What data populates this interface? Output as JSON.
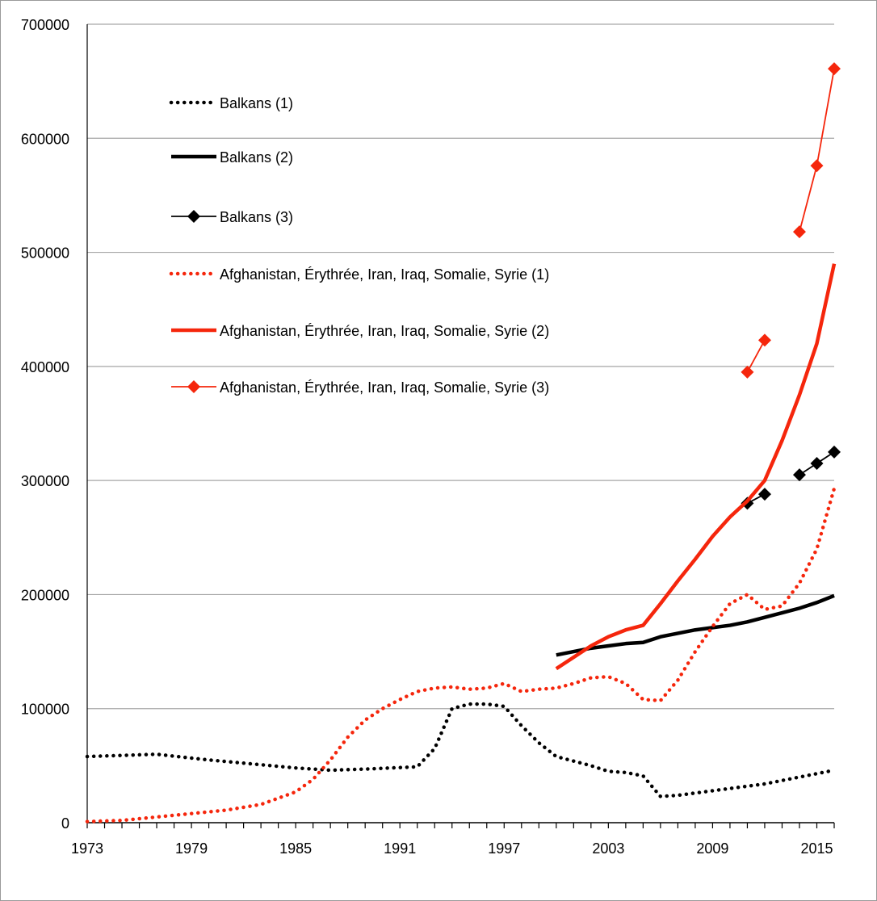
{
  "chart_data": {
    "type": "line",
    "title": "",
    "xlabel": "",
    "ylabel": "",
    "x_range": [
      1973,
      2016
    ],
    "ylim": [
      0,
      700000
    ],
    "y_ticks": [
      "0",
      "100000",
      "200000",
      "300000",
      "400000",
      "500000",
      "600000",
      "700000"
    ],
    "x_tick_labels": [
      "1973",
      "1979",
      "1985",
      "1991",
      "1997",
      "2003",
      "2009",
      "2015"
    ],
    "grid": "horizontal",
    "legend_position": "top-left",
    "colors": {
      "black": "#000000",
      "red": "#f5260c",
      "grid": "#a6a6a6"
    },
    "series": [
      {
        "name": "Balkans (1)",
        "color": "#000000",
        "style": "dotted",
        "x": [
          1973,
          1977,
          1980,
          1985,
          1987,
          1989,
          1992,
          1993,
          1994,
          1995,
          1996,
          1997,
          1998,
          1999,
          2000,
          2001,
          2002,
          2003,
          2004,
          2005,
          2006,
          2007,
          2008,
          2009,
          2010,
          2011,
          2012,
          2013,
          2014,
          2015,
          2016
        ],
        "y": [
          58000,
          60000,
          55000,
          48000,
          46000,
          47000,
          49000,
          65000,
          100000,
          104000,
          104000,
          102000,
          85000,
          70000,
          58000,
          54000,
          50000,
          45000,
          44000,
          41000,
          23000,
          24000,
          26000,
          28000,
          30000,
          32000,
          34000,
          37000,
          40000,
          43000,
          46000
        ]
      },
      {
        "name": "Balkans (2)",
        "color": "#000000",
        "style": "solid",
        "x": [
          2000,
          2001,
          2002,
          2003,
          2004,
          2005,
          2006,
          2007,
          2008,
          2009,
          2010,
          2011,
          2012,
          2013,
          2014,
          2015,
          2016
        ],
        "y": [
          147000,
          150000,
          153000,
          155000,
          157000,
          158000,
          163000,
          166000,
          169000,
          171000,
          173000,
          176000,
          180000,
          184000,
          188000,
          193000,
          199000
        ]
      },
      {
        "name": "Balkans (3)",
        "color": "#000000",
        "style": "marker",
        "x": [
          2011,
          2012,
          2013,
          2014,
          2015,
          2016
        ],
        "y": [
          280000,
          288000,
          null,
          305000,
          315000,
          325000
        ]
      },
      {
        "name": "Afghanistan, Érythrée, Iran, Iraq, Somalie, Syrie (1)",
        "color": "#f5260c",
        "style": "dotted",
        "x": [
          1973,
          1975,
          1977,
          1979,
          1981,
          1983,
          1985,
          1986,
          1987,
          1988,
          1989,
          1990,
          1991,
          1992,
          1993,
          1994,
          1995,
          1996,
          1997,
          1998,
          1999,
          2000,
          2001,
          2002,
          2003,
          2004,
          2005,
          2006,
          2007,
          2008,
          2009,
          2010,
          2011,
          2012,
          2013,
          2014,
          2015,
          2016
        ],
        "y": [
          1000,
          2000,
          5000,
          8000,
          11000,
          16000,
          27000,
          38000,
          55000,
          75000,
          90000,
          100000,
          108000,
          115000,
          118000,
          119000,
          117000,
          118000,
          122000,
          115000,
          117000,
          118000,
          122000,
          127000,
          128000,
          122000,
          108000,
          107000,
          125000,
          150000,
          172000,
          192000,
          200000,
          187000,
          190000,
          210000,
          240000,
          293000
        ]
      },
      {
        "name": "Afghanistan, Érythrée, Iran, Iraq, Somalie, Syrie (2)",
        "color": "#f5260c",
        "style": "solid",
        "x": [
          2000,
          2001,
          2002,
          2003,
          2004,
          2005,
          2006,
          2007,
          2008,
          2009,
          2010,
          2011,
          2012,
          2013,
          2014,
          2015,
          2016
        ],
        "y": [
          135000,
          145000,
          155000,
          163000,
          169000,
          173000,
          192000,
          212000,
          231000,
          251000,
          268000,
          282000,
          300000,
          335000,
          375000,
          420000,
          490000
        ]
      },
      {
        "name": "Afghanistan, Érythrée, Iran, Iraq, Somalie, Syrie (3)",
        "color": "#f5260c",
        "style": "marker",
        "x": [
          2011,
          2012,
          2013,
          2014,
          2015,
          2016
        ],
        "y": [
          395000,
          423000,
          null,
          518000,
          576000,
          661000
        ]
      }
    ]
  }
}
